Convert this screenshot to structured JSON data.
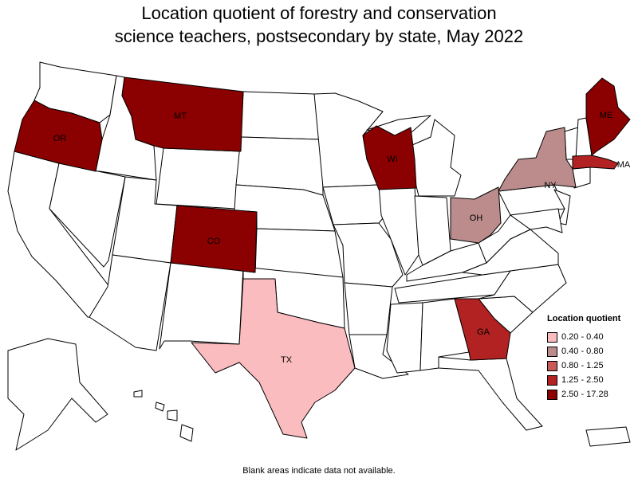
{
  "title_line1": "Location quotient of forestry and conservation",
  "title_line2": "science teachers, postsecondary by state, May 2022",
  "legend": {
    "title": "Location quotient",
    "items": [
      {
        "label": "0.20 - 0.40",
        "color": "#fbbcc0"
      },
      {
        "label": "0.40 - 0.80",
        "color": "#bc8c8c"
      },
      {
        "label": "0.80 - 1.25",
        "color": "#c85a5a"
      },
      {
        "label": "1.25 - 2.50",
        "color": "#b22222"
      },
      {
        "label": "2.50 - 17.28",
        "color": "#8b0000"
      }
    ]
  },
  "states": [
    {
      "abbr": "OR",
      "label": "OR",
      "value_range": "2.50 - 17.28",
      "color": "#8b0000"
    },
    {
      "abbr": "MT",
      "label": "MT",
      "value_range": "2.50 - 17.28",
      "color": "#8b0000"
    },
    {
      "abbr": "CO",
      "label": "CO",
      "value_range": "2.50 - 17.28",
      "color": "#8b0000"
    },
    {
      "abbr": "WI",
      "label": "WI",
      "value_range": "2.50 - 17.28",
      "color": "#8b0000"
    },
    {
      "abbr": "ME",
      "label": "ME",
      "value_range": "2.50 - 17.28",
      "color": "#8b0000"
    },
    {
      "abbr": "MA",
      "label": "MA",
      "value_range": "1.25 - 2.50",
      "color": "#b22222"
    },
    {
      "abbr": "GA",
      "label": "GA",
      "value_range": "1.25 - 2.50",
      "color": "#b22222"
    },
    {
      "abbr": "NY",
      "label": "NY",
      "value_range": "0.40 - 0.80",
      "color": "#bc8c8c"
    },
    {
      "abbr": "OH",
      "label": "OH",
      "value_range": "0.40 - 0.80",
      "color": "#bc8c8c"
    },
    {
      "abbr": "TX",
      "label": "TX",
      "value_range": "0.20 - 0.40",
      "color": "#fbbcc0"
    }
  ],
  "no_data_color": "#ffffff",
  "footnote": "Blank areas indicate data not available."
}
